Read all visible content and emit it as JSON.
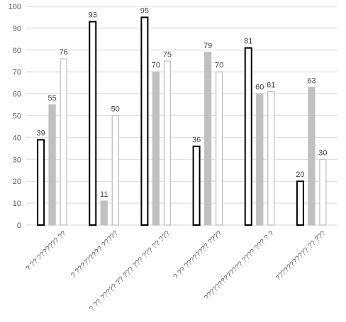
{
  "chart_data": {
    "type": "bar",
    "categories": [
      "? ?? ??????? ??",
      "? ????????? ?????",
      "? ?? ????? ?? ??? ??? ??? ?? ???",
      "? ?? ???????? ????",
      "????????????? ???? ??? ? ?",
      "??????????? ?? ???"
    ],
    "series": [
      {
        "values": [
          39,
          93,
          95,
          36,
          81,
          20
        ]
      },
      {
        "values": [
          55,
          11,
          70,
          79,
          60,
          63
        ]
      },
      {
        "values": [
          76,
          50,
          75,
          70,
          61,
          30
        ]
      }
    ],
    "y_ticks": [
      "0",
      "10",
      "20",
      "30",
      "40",
      "50",
      "60",
      "70",
      "80",
      "90",
      "100"
    ],
    "ylim": [
      0,
      100
    ],
    "grid": true,
    "legend": "none",
    "series_styles": [
      {
        "fill": "#ffffff",
        "stroke": "#000000"
      },
      {
        "fill": "#c0c0c0",
        "stroke": "#c0c0c0"
      },
      {
        "fill": "#ffffff",
        "stroke": "#bfbfbf"
      }
    ],
    "gridline_color": "#d9d9d9"
  }
}
